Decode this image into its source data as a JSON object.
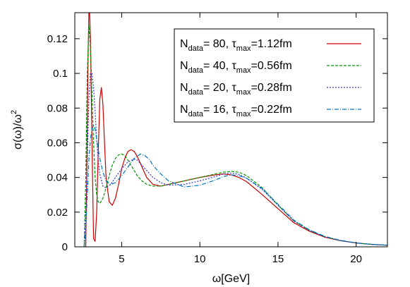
{
  "chart_data": {
    "type": "line",
    "xlabel": "ω[GeV]",
    "ylabel": "σ(ω)/ω",
    "ylabel_sup": "2",
    "xlim": [
      2,
      22
    ],
    "ylim": [
      0,
      0.135
    ],
    "xticks": [
      5,
      10,
      15,
      20
    ],
    "yticks": [
      0,
      0.02,
      0.04,
      0.06,
      0.08,
      0.1,
      0.12
    ],
    "xtick_labels": [
      "5",
      "10",
      "15",
      "20"
    ],
    "ytick_labels": [
      "0",
      "0.02",
      "0.04",
      "0.06",
      "0.08",
      "0.1",
      "0.12"
    ],
    "grid": false,
    "legend_position": "top-right",
    "series": [
      {
        "legend_parts": [
          "N",
          "data",
          "= 80, τ",
          "max",
          "=1.12fm"
        ],
        "color": "#cc0000",
        "dash": "solid",
        "x": [
          2.7,
          2.75,
          2.8,
          2.85,
          2.9,
          2.95,
          3.0,
          3.1,
          3.2,
          3.3,
          3.4,
          3.5,
          3.6,
          3.7,
          3.8,
          3.9,
          4.0,
          4.2,
          4.4,
          4.6,
          4.8,
          5.0,
          5.2,
          5.4,
          5.6,
          5.8,
          6.0,
          6.3,
          6.6,
          7.0,
          7.5,
          8.0,
          8.5,
          9.0,
          10.0,
          11.0,
          11.5,
          12.0,
          12.5,
          13.0,
          14.0,
          15.0,
          16.0,
          17.0,
          18.0,
          19.0,
          20.0,
          21.0,
          22.0
        ],
        "y": [
          0.0,
          0.03,
          0.07,
          0.11,
          0.135,
          0.135,
          0.12,
          0.06,
          0.005,
          0.003,
          0.02,
          0.055,
          0.085,
          0.092,
          0.082,
          0.06,
          0.04,
          0.026,
          0.024,
          0.028,
          0.036,
          0.045,
          0.051,
          0.055,
          0.056,
          0.055,
          0.052,
          0.046,
          0.04,
          0.036,
          0.035,
          0.036,
          0.037,
          0.038,
          0.04,
          0.0415,
          0.042,
          0.0415,
          0.04,
          0.0375,
          0.03,
          0.022,
          0.014,
          0.009,
          0.0055,
          0.0035,
          0.0022,
          0.0014,
          0.0009
        ]
      },
      {
        "legend_parts": [
          "N",
          "data",
          "= 40, τ",
          "max",
          "=0.56fm"
        ],
        "color": "#009900",
        "dash": "4,2",
        "x": [
          2.6,
          2.7,
          2.8,
          2.9,
          3.0,
          3.1,
          3.2,
          3.3,
          3.4,
          3.5,
          3.6,
          3.8,
          4.0,
          4.2,
          4.4,
          4.6,
          4.8,
          5.0,
          5.2,
          5.4,
          5.6,
          5.8,
          6.0,
          6.3,
          6.6,
          7.0,
          7.5,
          8.0,
          9.0,
          10.0,
          11.0,
          11.5,
          12.0,
          12.5,
          13.0,
          14.0,
          15.0,
          16.0,
          17.0,
          18.0,
          19.0,
          20.0,
          21.0,
          22.0
        ],
        "y": [
          0.0,
          0.04,
          0.1,
          0.128,
          0.115,
          0.088,
          0.06,
          0.04,
          0.03,
          0.026,
          0.025,
          0.028,
          0.034,
          0.041,
          0.047,
          0.051,
          0.053,
          0.0535,
          0.0525,
          0.05,
          0.047,
          0.044,
          0.041,
          0.038,
          0.036,
          0.035,
          0.035,
          0.036,
          0.038,
          0.04,
          0.042,
          0.043,
          0.0435,
          0.043,
          0.041,
          0.034,
          0.024,
          0.015,
          0.0095,
          0.0058,
          0.0036,
          0.0022,
          0.0014,
          0.0009
        ]
      },
      {
        "legend_parts": [
          "N",
          "data",
          "= 20, τ",
          "max",
          "=0.28fm"
        ],
        "color": "#3333cc",
        "dash": "2,2",
        "x": [
          2.6,
          2.7,
          2.8,
          2.9,
          3.0,
          3.1,
          3.2,
          3.3,
          3.4,
          3.5,
          3.6,
          3.8,
          4.0,
          4.3,
          4.6,
          5.0,
          5.4,
          5.8,
          6.0,
          6.3,
          6.6,
          7.0,
          7.5,
          8.0,
          9.0,
          10.0,
          11.0,
          11.5,
          12.0,
          12.5,
          13.0,
          14.0,
          15.0,
          16.0,
          17.0,
          18.0,
          19.0,
          20.0,
          21.0,
          22.0
        ],
        "y": [
          0.0,
          0.02,
          0.05,
          0.085,
          0.1,
          0.1,
          0.092,
          0.078,
          0.062,
          0.05,
          0.042,
          0.035,
          0.034,
          0.036,
          0.04,
          0.045,
          0.049,
          0.0505,
          0.05,
          0.047,
          0.044,
          0.04,
          0.037,
          0.0355,
          0.036,
          0.038,
          0.0405,
          0.042,
          0.0425,
          0.0418,
          0.0395,
          0.033,
          0.024,
          0.015,
          0.0095,
          0.0058,
          0.0036,
          0.0022,
          0.0014,
          0.0009
        ]
      },
      {
        "legend_parts": [
          "N",
          "data",
          "= 16, τ",
          "max",
          "=0.22fm"
        ],
        "color": "#0077bb",
        "dash": "6,2,1,2",
        "x": [
          2.6,
          2.7,
          2.8,
          2.9,
          3.0,
          3.1,
          3.2,
          3.3,
          3.4,
          3.5,
          3.6,
          3.8,
          4.0,
          4.3,
          4.6,
          5.0,
          5.4,
          5.8,
          6.2,
          6.5,
          6.8,
          7.0,
          7.5,
          8.0,
          9.0,
          10.0,
          11.0,
          11.5,
          12.0,
          12.5,
          13.0,
          14.0,
          15.0,
          16.0,
          17.0,
          18.0,
          19.0,
          20.0,
          21.0,
          22.0
        ],
        "y": [
          0.0,
          0.01,
          0.03,
          0.05,
          0.062,
          0.068,
          0.07,
          0.068,
          0.062,
          0.056,
          0.051,
          0.043,
          0.038,
          0.036,
          0.037,
          0.041,
          0.046,
          0.051,
          0.0535,
          0.0525,
          0.05,
          0.047,
          0.042,
          0.038,
          0.0345,
          0.0355,
          0.0385,
          0.0405,
          0.0415,
          0.041,
          0.0395,
          0.0335,
          0.0245,
          0.0155,
          0.0098,
          0.006,
          0.0037,
          0.0023,
          0.0014,
          0.0009
        ]
      }
    ]
  }
}
